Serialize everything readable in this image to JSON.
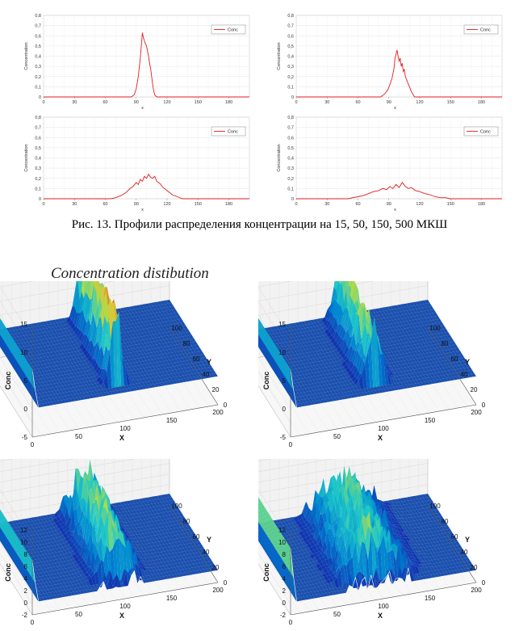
{
  "caption": "Рис. 13. Профили распределения концентрации на 15, 50, 150, 500 МКШ",
  "title3d": "Concentration distibution",
  "chart_data": [
    {
      "type": "line",
      "legend": "Conc",
      "ylabel": "Concentration",
      "xlabel": "x",
      "xlim": [
        0,
        200
      ],
      "ylim": [
        0,
        0.8
      ],
      "xticks": [
        0,
        30,
        60,
        90,
        120,
        150,
        180
      ],
      "yticks": [
        "0",
        "0,1",
        "0,2",
        "0,3",
        "0,4",
        "0,5",
        "0,6",
        "0,7",
        "0,8"
      ],
      "x": [
        0,
        85,
        88,
        90,
        92,
        94,
        95,
        96,
        97,
        98,
        99,
        100,
        101,
        102,
        103,
        104,
        105,
        106,
        107,
        108,
        110,
        112,
        200
      ],
      "y": [
        0,
        0,
        0.02,
        0.08,
        0.2,
        0.38,
        0.5,
        0.63,
        0.58,
        0.55,
        0.52,
        0.5,
        0.45,
        0.4,
        0.33,
        0.28,
        0.2,
        0.12,
        0.06,
        0.02,
        0,
        0,
        0
      ]
    },
    {
      "type": "line",
      "legend": "Conc",
      "ylabel": "Concentration",
      "xlabel": "x",
      "xlim": [
        0,
        200
      ],
      "ylim": [
        0,
        0.8
      ],
      "xticks": [
        0,
        30,
        60,
        90,
        120,
        150,
        180
      ],
      "yticks": [
        "0",
        "0,1",
        "0,2",
        "0,3",
        "0,4",
        "0,5",
        "0,6",
        "0,7",
        "0,8"
      ],
      "x": [
        0,
        82,
        86,
        89,
        91,
        93,
        95,
        96,
        97,
        98,
        99,
        100,
        101,
        102,
        103,
        104,
        105,
        106,
        108,
        110,
        112,
        115,
        200
      ],
      "y": [
        0,
        0,
        0.03,
        0.07,
        0.12,
        0.18,
        0.28,
        0.38,
        0.42,
        0.46,
        0.4,
        0.35,
        0.38,
        0.3,
        0.33,
        0.25,
        0.27,
        0.2,
        0.15,
        0.1,
        0.05,
        0,
        0
      ]
    },
    {
      "type": "line",
      "legend": "Conc",
      "ylabel": "Concentration",
      "xlabel": "x",
      "xlim": [
        0,
        200
      ],
      "ylim": [
        0,
        0.8
      ],
      "xticks": [
        0,
        30,
        60,
        90,
        120,
        150,
        180
      ],
      "yticks": [
        "0",
        "0,1",
        "0,2",
        "0,3",
        "0,4",
        "0,5",
        "0,6",
        "0,7",
        "0,8"
      ],
      "x": [
        0,
        65,
        70,
        75,
        80,
        84,
        87,
        90,
        92,
        94,
        96,
        98,
        100,
        102,
        104,
        106,
        108,
        110,
        113,
        116,
        120,
        125,
        130,
        135,
        200
      ],
      "y": [
        0,
        0,
        0.01,
        0.03,
        0.06,
        0.1,
        0.12,
        0.16,
        0.14,
        0.19,
        0.17,
        0.22,
        0.2,
        0.24,
        0.21,
        0.2,
        0.22,
        0.17,
        0.15,
        0.11,
        0.08,
        0.04,
        0.02,
        0,
        0
      ]
    },
    {
      "type": "line",
      "legend": "Conc",
      "ylabel": "Concentration",
      "xlabel": "x",
      "xlim": [
        0,
        200
      ],
      "ylim": [
        0,
        0.8
      ],
      "xticks": [
        0,
        30,
        60,
        90,
        120,
        150,
        180
      ],
      "yticks": [
        "0",
        "0,1",
        "0,2",
        "0,3",
        "0,4",
        "0,5",
        "0,6",
        "0,7",
        "0,8"
      ],
      "x": [
        0,
        50,
        55,
        60,
        65,
        70,
        75,
        80,
        84,
        88,
        91,
        94,
        97,
        100,
        103,
        106,
        109,
        112,
        116,
        120,
        125,
        130,
        135,
        140,
        145,
        150,
        200
      ],
      "y": [
        0,
        0,
        0.01,
        0.02,
        0.03,
        0.05,
        0.07,
        0.08,
        0.1,
        0.09,
        0.12,
        0.1,
        0.14,
        0.11,
        0.16,
        0.12,
        0.1,
        0.11,
        0.08,
        0.07,
        0.05,
        0.04,
        0.02,
        0.01,
        0.01,
        0,
        0
      ]
    },
    {
      "type": "surface3d",
      "zlabel": "Conc",
      "xlabel": "X",
      "ylabel": "Y",
      "zticks": [
        "15",
        "10",
        "5",
        "0",
        "-5"
      ],
      "xticks": [
        "0",
        "50",
        "100",
        "150",
        "200"
      ],
      "yticks": [
        "0",
        "20",
        "40",
        "60",
        "80",
        "100"
      ]
    },
    {
      "type": "surface3d",
      "zlabel": "Conc",
      "xlabel": "X",
      "ylabel": "Y",
      "zticks": [
        "15",
        "10",
        "5",
        "0",
        "-5"
      ],
      "xticks": [
        "0",
        "50",
        "100",
        "150",
        "200"
      ],
      "yticks": [
        "0",
        "20",
        "40",
        "60",
        "80",
        "100"
      ]
    },
    {
      "type": "surface3d",
      "zlabel": "Conc",
      "xlabel": "X",
      "ylabel": "Y",
      "zticks": [
        "12",
        "10",
        "8",
        "6",
        "4",
        "2",
        "0",
        "-2"
      ],
      "xticks": [
        "0",
        "50",
        "100",
        "150",
        "200"
      ],
      "yticks": [
        "0",
        "20",
        "40",
        "60",
        "80",
        "100"
      ]
    },
    {
      "type": "surface3d",
      "zlabel": "Conc",
      "xlabel": "X",
      "ylabel": "Y",
      "zticks": [
        "12",
        "10",
        "8",
        "6",
        "4",
        "2",
        "0",
        "-2"
      ],
      "xticks": [
        "0",
        "50",
        "100",
        "150",
        "200"
      ],
      "yticks": [
        "0",
        "20",
        "40",
        "60",
        "80",
        "100"
      ]
    }
  ]
}
